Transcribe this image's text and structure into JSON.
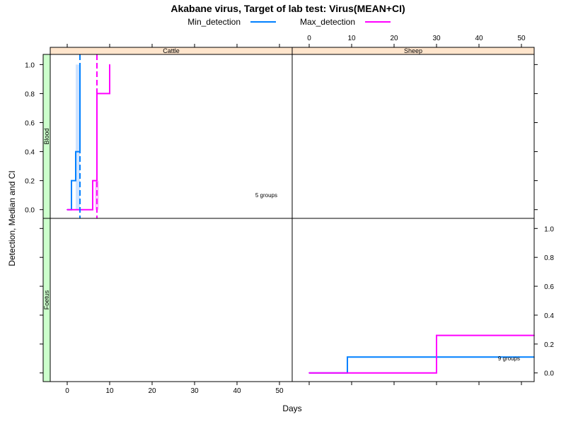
{
  "chart_data": {
    "type": "line",
    "title": "Akabane virus, Target of lab test: Virus(MEAN+CI)",
    "xlabel": "Days",
    "ylabel": "Detection, Median and CI",
    "xlim": [
      -4,
      53
    ],
    "ylim": [
      -0.06,
      1.07
    ],
    "x_ticks": [
      0,
      10,
      20,
      30,
      40,
      50
    ],
    "y_ticks": [
      0.0,
      0.2,
      0.4,
      0.6,
      0.8,
      1.0
    ],
    "x_tick_labels": [
      "0",
      "10",
      "20",
      "30",
      "40",
      "50"
    ],
    "y_tick_labels": [
      "0.0",
      "0.2",
      "0.4",
      "0.6",
      "0.8",
      "1.0"
    ],
    "legend": {
      "position": "top",
      "entries": [
        {
          "name": "Min_detection",
          "color": "#0080ff"
        },
        {
          "name": "Max_detection",
          "color": "#ff00ff"
        }
      ]
    },
    "columns": [
      "Cattle",
      "Sheep"
    ],
    "rows": [
      "Blood",
      "Foetus"
    ],
    "colors": {
      "min": "#0080ff",
      "max": "#ff00ff",
      "ci_min": "#a0c8ff",
      "ci_max": "#ff90ff",
      "col_strip": "#ffe5cc",
      "row_strip": "#ccffcc"
    },
    "panels": [
      {
        "column": "Cattle",
        "row": "Blood",
        "annotation": "5 groups",
        "series": [
          {
            "name": "Min_detection",
            "x": [
              0,
              1,
              1,
              2,
              2,
              3,
              3
            ],
            "y": [
              0.0,
              0.0,
              0.2,
              0.2,
              0.4,
              0.4,
              1.0
            ]
          },
          {
            "name": "Max_detection",
            "x": [
              0,
              6,
              6,
              7,
              7,
              10,
              10
            ],
            "y": [
              0.0,
              0.0,
              0.2,
              0.2,
              0.8,
              0.8,
              1.0
            ]
          }
        ],
        "median_lines": [
          {
            "series": "Min_detection",
            "x": 3
          },
          {
            "series": "Max_detection",
            "x": 7
          }
        ],
        "ci_bands": [
          {
            "series": "Min_detection",
            "x": [
              2,
              3
            ],
            "y": [
              0.0,
              1.0
            ]
          },
          {
            "series": "Max_detection",
            "x": [
              6.5,
              7.5
            ],
            "y": [
              0.0,
              0.2
            ]
          }
        ]
      },
      {
        "column": "Sheep",
        "row": "Blood",
        "annotation": "",
        "series": []
      },
      {
        "column": "Cattle",
        "row": "Foetus",
        "annotation": "",
        "series": []
      },
      {
        "column": "Sheep",
        "row": "Foetus",
        "annotation": "9 groups",
        "series": [
          {
            "name": "Min_detection",
            "x": [
              0,
              9,
              9,
              53
            ],
            "y": [
              0.0,
              0.0,
              0.11,
              0.11
            ]
          },
          {
            "name": "Max_detection",
            "x": [
              0,
              30,
              30,
              53
            ],
            "y": [
              0.0,
              0.0,
              0.26,
              0.26
            ]
          }
        ]
      }
    ]
  }
}
